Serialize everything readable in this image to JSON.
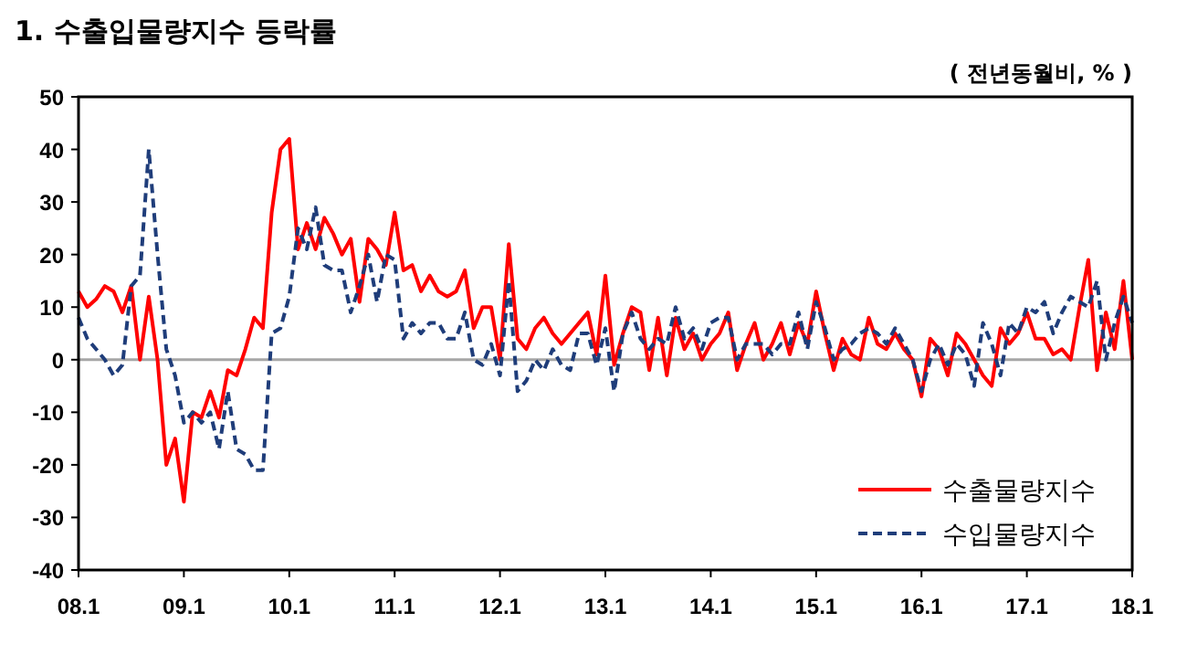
{
  "chart_data": {
    "type": "line",
    "title": "1. 수출입물량지수 등락률",
    "ylabel": "( 전년동월비, % )",
    "categories": [
      "08.1",
      null,
      null,
      null,
      null,
      null,
      null,
      null,
      null,
      null,
      null,
      null,
      "09.1",
      null,
      null,
      null,
      null,
      null,
      null,
      null,
      null,
      null,
      null,
      null,
      "10.1",
      null,
      null,
      null,
      null,
      null,
      null,
      null,
      null,
      null,
      null,
      null,
      "11.1",
      null,
      null,
      null,
      null,
      null,
      null,
      null,
      null,
      null,
      null,
      null,
      "12.1",
      null,
      null,
      null,
      null,
      null,
      null,
      null,
      null,
      null,
      null,
      null,
      "13.1",
      null,
      null,
      null,
      null,
      null,
      null,
      null,
      null,
      null,
      null,
      null,
      "14.1",
      null,
      null,
      null,
      null,
      null,
      null,
      null,
      null,
      null,
      null,
      null,
      "15.1",
      null,
      null,
      null,
      null,
      null,
      null,
      null,
      null,
      null,
      null,
      null,
      "16.1",
      null,
      null,
      null,
      null,
      null,
      null,
      null,
      null,
      null,
      null,
      null,
      "17.1",
      null,
      null,
      null,
      null,
      null,
      null,
      null,
      null,
      null,
      null,
      null,
      "18.1"
    ],
    "ylim": [
      -40,
      50
    ],
    "yticks": [
      -40,
      -30,
      -20,
      -10,
      0,
      10,
      20,
      30,
      40,
      50
    ],
    "grid": false,
    "legend": "bottom right",
    "marker": "none",
    "ref_lines": [
      {
        "axis": "y",
        "value": 0,
        "color": "#a6a6a6"
      }
    ],
    "series": [
      {
        "name": "수출물량지수",
        "color": "#ff0000",
        "line_style": "solid",
        "values": [
          13,
          10,
          11.5,
          14,
          13,
          9,
          14,
          0,
          12,
          0,
          -20,
          -15,
          -27,
          -10,
          -11,
          -6,
          -11,
          -2,
          -3,
          2,
          8,
          6,
          28,
          40,
          42,
          21,
          26,
          21,
          27,
          24,
          20,
          23,
          11,
          23,
          21,
          18,
          28,
          17,
          18,
          13,
          16,
          13,
          12,
          13,
          17,
          6,
          10,
          10,
          0,
          22,
          4,
          2,
          6,
          8,
          5,
          3,
          5,
          7,
          9,
          1,
          16,
          -1,
          5,
          10,
          9,
          -2,
          8,
          -3,
          8,
          2,
          5,
          0,
          3,
          5,
          9,
          -2,
          3,
          7,
          0,
          3,
          7,
          1,
          7,
          3,
          13,
          5,
          -2,
          4,
          1,
          0,
          8,
          3,
          2,
          5,
          2,
          0,
          -7,
          4,
          2,
          -3,
          5,
          3,
          0,
          -3,
          -5,
          6,
          3,
          5,
          9,
          4,
          4,
          1,
          2,
          0,
          10,
          19,
          -2,
          9,
          2,
          15,
          0
        ]
      },
      {
        "name": "수입물량지수",
        "color": "#1f3d7a",
        "line_style": "dashed",
        "values": [
          8,
          4,
          2,
          0,
          -3,
          -1,
          14,
          16,
          40,
          20,
          2,
          -3,
          -12,
          -10,
          -12,
          -10,
          -17,
          -6,
          -17,
          -18,
          -21,
          -21,
          5,
          6,
          12,
          25,
          21,
          29,
          18,
          17,
          17,
          9,
          14,
          20,
          11,
          20,
          19,
          4,
          7,
          5,
          7,
          7,
          4,
          4,
          9,
          0,
          -1,
          3,
          -3,
          15,
          -6,
          -4,
          0,
          -2,
          2,
          -1,
          -2,
          5,
          5,
          -1,
          6,
          -6,
          5,
          9,
          4,
          2,
          4,
          3,
          10,
          4,
          6,
          2,
          7,
          8,
          8,
          0,
          3,
          3,
          3,
          1,
          3,
          3,
          9,
          2,
          11,
          6,
          0,
          2,
          3,
          5,
          6,
          5,
          3,
          6,
          3,
          0,
          -6,
          0,
          3,
          -1,
          3,
          1,
          -5,
          7,
          3,
          -3,
          7,
          5,
          10,
          9,
          11,
          5,
          9,
          12,
          11,
          10,
          15,
          0,
          7,
          12,
          7
        ]
      }
    ]
  }
}
